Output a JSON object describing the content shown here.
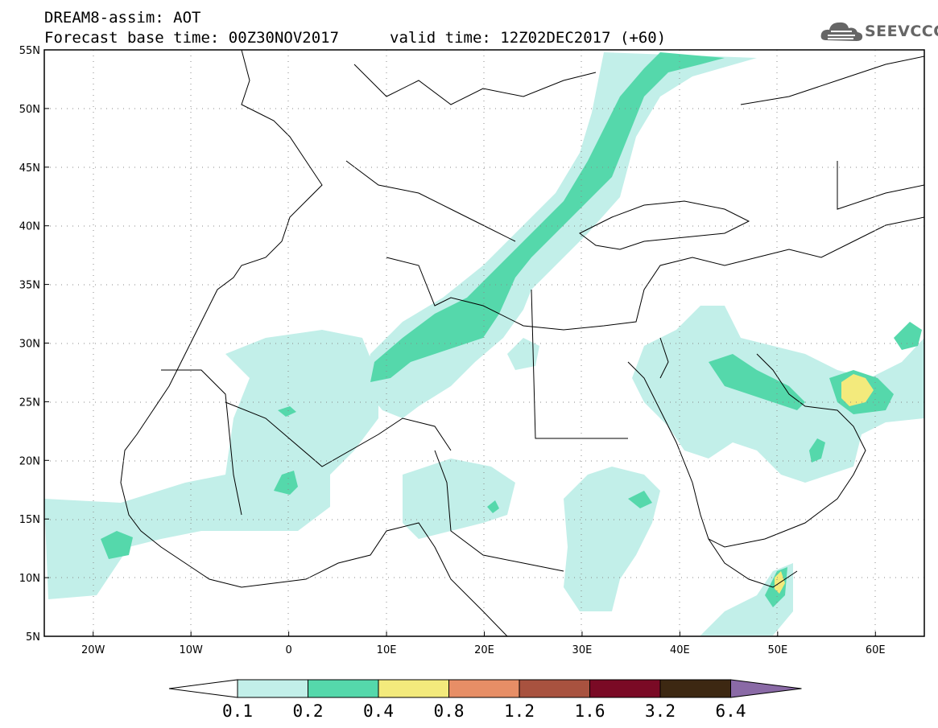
{
  "header": {
    "title": "DREAM8-assim: AOT",
    "base_time": "Forecast base time: 00Z30NOV2017",
    "valid_time": "valid time: 12Z02DEC2017 (+60)"
  },
  "logo": {
    "text": "SEEVCCC",
    "icon": "cloud-icon"
  },
  "map": {
    "lon_range": [
      -25,
      65
    ],
    "lat_range": [
      5,
      55
    ],
    "lon_labels": [
      "20W",
      "10W",
      "0",
      "10E",
      "20E",
      "30E",
      "40E",
      "50E",
      "60E"
    ],
    "lat_labels": [
      "55N",
      "50N",
      "45N",
      "40N",
      "35N",
      "30N",
      "25N",
      "20N",
      "15N",
      "10N",
      "5N"
    ]
  },
  "colorbar": {
    "levels": [
      "0.1",
      "0.2",
      "0.4",
      "0.8",
      "1.2",
      "1.6",
      "3.2",
      "6.4"
    ],
    "colors": [
      "#ffffff",
      "#c2efe9",
      "#55d8ab",
      "#f3ea7c",
      "#e78e66",
      "#a8523f",
      "#7a0a25",
      "#3d2812",
      "#8a6aa6"
    ]
  }
}
